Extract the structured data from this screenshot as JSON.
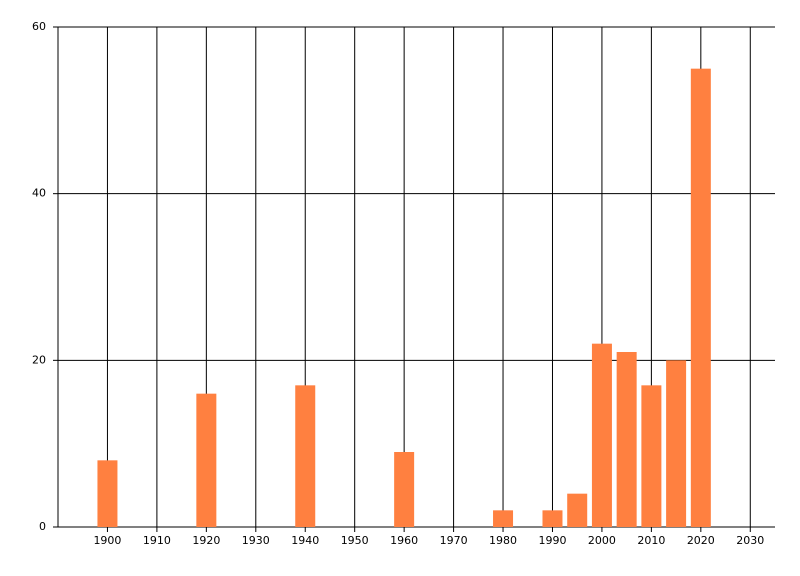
{
  "chart_data": {
    "type": "bar",
    "x": [
      1900,
      1920,
      1940,
      1960,
      1980,
      1990,
      1995,
      2000,
      2005,
      2010,
      2015,
      2020
    ],
    "values": [
      8,
      16,
      17,
      9,
      2,
      2,
      4,
      22,
      21,
      17,
      20,
      55
    ],
    "color": "#ff8040",
    "xlim": [
      1890,
      2035
    ],
    "xticks": [
      1900,
      1910,
      1920,
      1930,
      1940,
      1950,
      1960,
      1970,
      1980,
      1990,
      2000,
      2010,
      2020,
      2030
    ],
    "ylim": [
      0,
      60
    ],
    "yticks": [
      0,
      20,
      40,
      60
    ],
    "grid": true
  }
}
